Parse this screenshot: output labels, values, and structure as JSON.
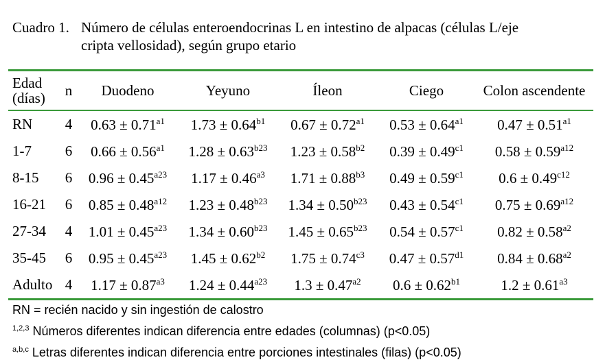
{
  "caption": {
    "label": "Cuadro 1.",
    "lines": [
      "Número de células enteroendocrinas L en intestino de alpacas (células L/eje",
      "cripta vellosidad), según grupo etario"
    ]
  },
  "table": {
    "header": [
      "Edad (días)",
      "n",
      "Duodeno",
      "Yeyuno",
      "Íleon",
      "Ciego",
      "Colon ascendente"
    ],
    "rows": [
      [
        "RN",
        "4",
        {
          "value": "0.63 ± 0.71",
          "sup": "a1"
        },
        {
          "value": "1.73 ± 0.64",
          "sup": "b1"
        },
        {
          "value": "0.67 ± 0.72",
          "sup": "a1"
        },
        {
          "value": "0.53 ± 0.64",
          "sup": "a1"
        },
        {
          "value": "0.47 ± 0.51",
          "sup": "a1"
        }
      ],
      [
        "1-7",
        "6",
        {
          "value": "0.66 ± 0.56",
          "sup": "a1"
        },
        {
          "value": "1.28 ± 0.63",
          "sup": "b23"
        },
        {
          "value": "1.23 ± 0.58",
          "sup": "b2"
        },
        {
          "value": "0.39 ± 0.49",
          "sup": "c1"
        },
        {
          "value": "0.58 ± 0.59",
          "sup": "a12"
        }
      ],
      [
        "8-15",
        "6",
        {
          "value": "0.96 ± 0.45",
          "sup": "a23"
        },
        {
          "value": "1.17 ± 0.46",
          "sup": "a3"
        },
        {
          "value": "1.71 ± 0.88",
          "sup": "b3"
        },
        {
          "value": "0.49 ± 0.59",
          "sup": "c1"
        },
        {
          "value": "0.6 ± 0.49",
          "sup": "c12"
        }
      ],
      [
        "16-21",
        "6",
        {
          "value": "0.85 ± 0.48",
          "sup": "a12"
        },
        {
          "value": "1.23 ± 0.48",
          "sup": "b23"
        },
        {
          "value": "1.34 ± 0.50",
          "sup": "b23"
        },
        {
          "value": "0.43 ± 0.54",
          "sup": "c1"
        },
        {
          "value": "0.75 ± 0.69",
          "sup": "a12"
        }
      ],
      [
        "27-34",
        "4",
        {
          "value": "1.01 ± 0.45",
          "sup": "a23"
        },
        {
          "value": "1.34 ± 0.60",
          "sup": "b23"
        },
        {
          "value": "1.45 ± 0.65",
          "sup": "b23"
        },
        {
          "value": "0.54 ± 0.57",
          "sup": "c1"
        },
        {
          "value": "0.82 ± 0.58",
          "sup": "a2"
        }
      ],
      [
        "35-45",
        "6",
        {
          "value": "0.95 ± 0.45",
          "sup": "a23"
        },
        {
          "value": "1.45 ± 0.62",
          "sup": "b2"
        },
        {
          "value": "1.75 ± 0.74",
          "sup": "c3"
        },
        {
          "value": "0.47 ± 0.57",
          "sup": "d1"
        },
        {
          "value": "0.84 ± 0.68",
          "sup": "a2"
        }
      ],
      [
        "Adulto",
        "4",
        {
          "value": "1.17 ± 0.87",
          "sup": "a3"
        },
        {
          "value": "1.24 ± 0.44",
          "sup": "a23"
        },
        {
          "value": "1.3 ± 0.47",
          "sup": "a2"
        },
        {
          "value": "0.6 ± 0.62",
          "sup": "b1"
        },
        {
          "value": "1.2 ± 0.61",
          "sup": "a3"
        }
      ]
    ]
  },
  "footnotes": [
    {
      "text": "RN = recién nacido y sin ingestión de calostro"
    },
    {
      "sup": "1,2,3",
      "text": "Números diferentes indican diferencia entre edades (columnas) (p<0.05)"
    },
    {
      "sup": "a,b,c",
      "text": "Letras diferentes indican diferencia entre porciones intestinales (filas) (p<0.05)"
    }
  ]
}
